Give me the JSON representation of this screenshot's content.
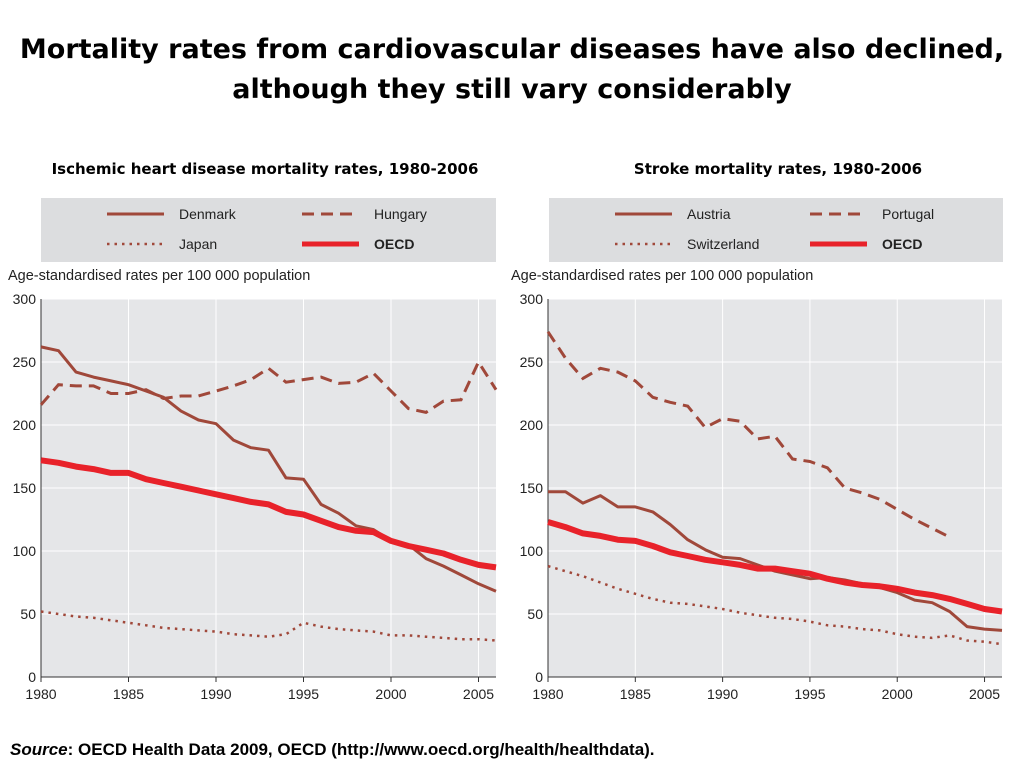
{
  "title_line1": "Mortality rates from cardiovascular diseases have also declined,",
  "title_line2": "although they still vary considerably",
  "source_label": "Source",
  "source_text": ": OECD Health Data 2009, OECD (http://www.oecd.org/health/healthdata).",
  "colors": {
    "legend_bg": "#dcdddf",
    "plot_bg": "#e5e6e8",
    "grid": "#ffffff",
    "brown": "#a0483a",
    "red": "#e8222a"
  },
  "chart_data": [
    {
      "type": "line",
      "title": "Ischemic heart disease mortality rates, 1980-2006",
      "ylabel": "Age-standardised rates per 100 000 population",
      "ylim": [
        0,
        300
      ],
      "yticks": [
        0,
        50,
        100,
        150,
        200,
        250,
        300
      ],
      "xlim": [
        1980,
        2006
      ],
      "xticks": [
        1980,
        1985,
        1990,
        1995,
        2000,
        2005
      ],
      "legend_position": "top",
      "series": [
        {
          "name": "Denmark",
          "style": "solid",
          "color": "#a0483a",
          "x": [
            1980,
            1981,
            1982,
            1983,
            1984,
            1985,
            1986,
            1987,
            1988,
            1989,
            1990,
            1991,
            1992,
            1993,
            1994,
            1995,
            1996,
            1997,
            1998,
            1999,
            2000,
            2001,
            2002,
            2003,
            2004,
            2005,
            2006
          ],
          "y": [
            262,
            259,
            242,
            238,
            235,
            232,
            227,
            222,
            211,
            204,
            201,
            188,
            182,
            180,
            158,
            157,
            137,
            130,
            120,
            117,
            108,
            105,
            94,
            88,
            81,
            74,
            68
          ]
        },
        {
          "name": "Hungary",
          "style": "dashed",
          "color": "#a0483a",
          "x": [
            1980,
            1981,
            1982,
            1983,
            1984,
            1985,
            1986,
            1987,
            1988,
            1989,
            1990,
            1991,
            1992,
            1993,
            1994,
            1995,
            1996,
            1997,
            1998,
            1999,
            2000,
            2001,
            2002,
            2003,
            2004,
            2005,
            2006
          ],
          "y": [
            216,
            232,
            231,
            231,
            225,
            225,
            228,
            221,
            223,
            223,
            227,
            231,
            236,
            245,
            234,
            236,
            238,
            233,
            234,
            241,
            227,
            213,
            210,
            219,
            220,
            250,
            228
          ]
        },
        {
          "name": "Japan",
          "style": "dotted",
          "color": "#a0483a",
          "x": [
            1980,
            1981,
            1982,
            1983,
            1984,
            1985,
            1986,
            1987,
            1988,
            1989,
            1990,
            1991,
            1992,
            1993,
            1994,
            1995,
            1996,
            1997,
            1998,
            1999,
            2000,
            2001,
            2002,
            2003,
            2004,
            2005,
            2006
          ],
          "y": [
            52,
            50,
            48,
            47,
            45,
            43,
            41,
            39,
            38,
            37,
            36,
            34,
            33,
            32,
            34,
            43,
            40,
            38,
            37,
            36,
            33,
            33,
            32,
            31,
            30,
            30,
            29
          ]
        },
        {
          "name": "OECD",
          "style": "thick",
          "color": "#e8222a",
          "x": [
            1980,
            1981,
            1982,
            1983,
            1984,
            1985,
            1986,
            1987,
            1988,
            1989,
            1990,
            1991,
            1992,
            1993,
            1994,
            1995,
            1996,
            1997,
            1998,
            1999,
            2000,
            2001,
            2002,
            2003,
            2004,
            2005,
            2006
          ],
          "y": [
            172,
            170,
            167,
            165,
            162,
            162,
            157,
            154,
            151,
            148,
            145,
            142,
            139,
            137,
            131,
            129,
            124,
            119,
            116,
            115,
            108,
            104,
            101,
            98,
            93,
            89,
            87
          ]
        }
      ]
    },
    {
      "type": "line",
      "title": "Stroke mortality rates, 1980-2006",
      "ylabel": "Age-standardised rates per 100 000 population",
      "ylim": [
        0,
        300
      ],
      "yticks": [
        0,
        50,
        100,
        150,
        200,
        250,
        300
      ],
      "xlim": [
        1980,
        2006
      ],
      "xticks": [
        1980,
        1985,
        1990,
        1995,
        2000,
        2005
      ],
      "legend_position": "top",
      "series": [
        {
          "name": "Austria",
          "style": "solid",
          "color": "#a0483a",
          "x": [
            1980,
            1981,
            1982,
            1983,
            1984,
            1985,
            1986,
            1987,
            1988,
            1989,
            1990,
            1991,
            1992,
            1993,
            1994,
            1995,
            1996,
            1997,
            1998,
            1999,
            2000,
            2001,
            2002,
            2003,
            2004,
            2005,
            2006
          ],
          "y": [
            147,
            147,
            138,
            144,
            135,
            135,
            131,
            121,
            109,
            101,
            95,
            94,
            89,
            84,
            81,
            78,
            79,
            77,
            74,
            71,
            67,
            61,
            59,
            52,
            40,
            38,
            37
          ]
        },
        {
          "name": "Portugal",
          "style": "dashed",
          "color": "#a0483a",
          "x": [
            1980,
            1981,
            1982,
            1983,
            1984,
            1985,
            1986,
            1987,
            1988,
            1989,
            1990,
            1991,
            1992,
            1993,
            1994,
            1995,
            1996,
            1997,
            1998,
            1999,
            2000,
            2001,
            2002,
            2003
          ],
          "y": [
            274,
            253,
            237,
            245,
            242,
            235,
            222,
            218,
            215,
            198,
            205,
            203,
            189,
            191,
            173,
            171,
            166,
            150,
            146,
            141,
            133,
            125,
            118,
            111
          ]
        },
        {
          "name": "Switzerland",
          "style": "dotted",
          "color": "#a0483a",
          "x": [
            1980,
            1981,
            1982,
            1983,
            1984,
            1985,
            1986,
            1987,
            1988,
            1989,
            1990,
            1991,
            1992,
            1993,
            1994,
            1995,
            1996,
            1997,
            1998,
            1999,
            2000,
            2001,
            2002,
            2003,
            2004,
            2005,
            2006
          ],
          "y": [
            88,
            84,
            80,
            75,
            70,
            66,
            62,
            59,
            58,
            56,
            54,
            51,
            49,
            47,
            46,
            44,
            41,
            40,
            38,
            37,
            34,
            32,
            31,
            33,
            29,
            28,
            26
          ]
        },
        {
          "name": "OECD",
          "style": "thick",
          "color": "#e8222a",
          "x": [
            1980,
            1981,
            1982,
            1983,
            1984,
            1985,
            1986,
            1987,
            1988,
            1989,
            1990,
            1991,
            1992,
            1993,
            1994,
            1995,
            1996,
            1997,
            1998,
            1999,
            2000,
            2001,
            2002,
            2003,
            2004,
            2005,
            2006
          ],
          "y": [
            123,
            119,
            114,
            112,
            109,
            108,
            104,
            99,
            96,
            93,
            91,
            89,
            86,
            86,
            84,
            82,
            78,
            75,
            73,
            72,
            70,
            67,
            65,
            62,
            58,
            54,
            52
          ]
        }
      ]
    }
  ]
}
